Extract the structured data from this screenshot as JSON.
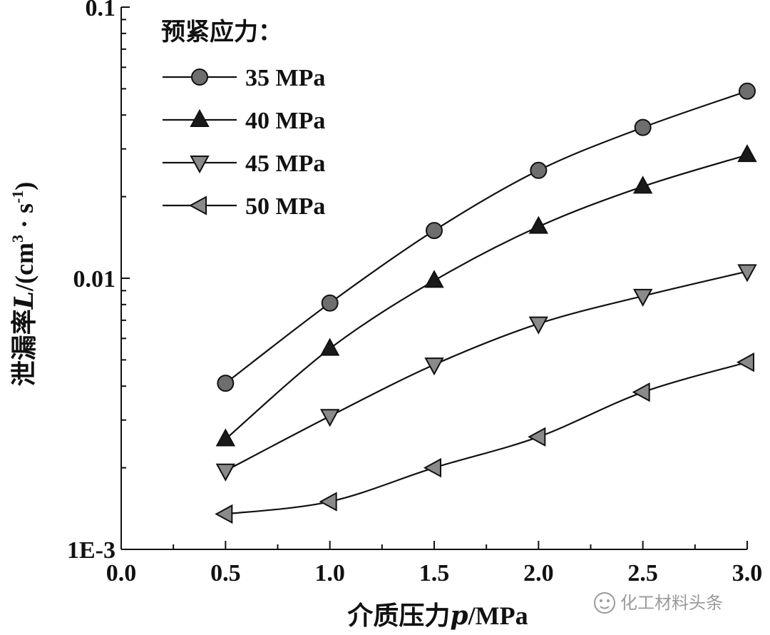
{
  "chart_data": {
    "type": "line",
    "xlabel_prefix": "介质压力",
    "xlabel_var": "p",
    "xlabel_unit": "/MPa",
    "ylabel_prefix": "泄漏率",
    "ylabel_var": "L",
    "ylabel_unit_open": "/(cm",
    "ylabel_unit_exp3": "3",
    "ylabel_unit_mid": " · s",
    "ylabel_unit_expm1": "-1",
    "ylabel_unit_close": ")",
    "yscale": "log",
    "xlim": [
      0.0,
      3.0
    ],
    "ylim": [
      0.001,
      0.1
    ],
    "x_ticks": [
      0.0,
      0.5,
      1.0,
      1.5,
      2.0,
      2.5,
      3.0
    ],
    "x_tick_labels": [
      "0.0",
      "0.5",
      "1.0",
      "1.5",
      "2.0",
      "2.5",
      "3.0"
    ],
    "y_ticks": [
      0.001,
      0.01,
      0.1
    ],
    "y_tick_labels": [
      "1E-3",
      "0.01",
      "0.1"
    ],
    "legend_title": "预紧应力：",
    "legend_position": "top-left",
    "x": [
      0.5,
      1.0,
      1.5,
      2.0,
      2.5,
      3.0
    ],
    "series": [
      {
        "name": "35 MPa",
        "marker": "circle",
        "color": "#6e6e6e",
        "values": [
          0.0041,
          0.0081,
          0.015,
          0.025,
          0.036,
          0.049
        ]
      },
      {
        "name": "40 MPa",
        "marker": "triangle-up",
        "color": "#1a1a1a",
        "values": [
          0.00255,
          0.0055,
          0.0098,
          0.0155,
          0.0218,
          0.0285
        ]
      },
      {
        "name": "45 MPa",
        "marker": "triangle-down",
        "color": "#8a8a8a",
        "values": [
          0.00195,
          0.0031,
          0.0048,
          0.0068,
          0.0086,
          0.0106
        ]
      },
      {
        "name": "50 MPa",
        "marker": "triangle-left",
        "color": "#8a8a8a",
        "values": [
          0.00135,
          0.0015,
          0.002,
          0.0026,
          0.0038,
          0.0049
        ]
      }
    ]
  },
  "watermark": {
    "text": "化工材料头条",
    "icon": "wechat-icon"
  }
}
